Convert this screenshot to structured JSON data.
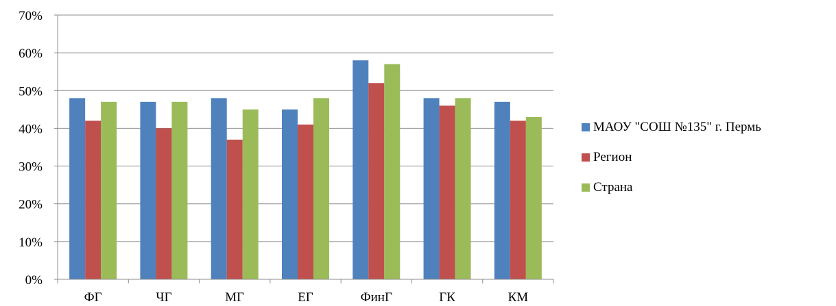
{
  "chart_data": {
    "type": "bar",
    "categories": [
      "ФГ",
      "ЧГ",
      "МГ",
      "ЕГ",
      "ФинГ",
      "ГК",
      "КМ"
    ],
    "series": [
      {
        "name": "МАОУ \"СОШ №135\" г. Пермь",
        "color": "#4f81bd",
        "values": [
          48,
          47,
          48,
          45,
          58,
          48,
          47
        ]
      },
      {
        "name": "Регион",
        "color": "#c0504d",
        "values": [
          42,
          40,
          37,
          41,
          52,
          46,
          42
        ]
      },
      {
        "name": "Страна",
        "color": "#9bbb59",
        "values": [
          47,
          47,
          45,
          48,
          57,
          48,
          43
        ]
      }
    ],
    "y_ticks": [
      "0%",
      "10%",
      "20%",
      "30%",
      "40%",
      "50%",
      "60%",
      "70%"
    ],
    "ylim": [
      0,
      70
    ],
    "grid": true,
    "legend_position": "right",
    "title": "",
    "xlabel": "",
    "ylabel": ""
  }
}
